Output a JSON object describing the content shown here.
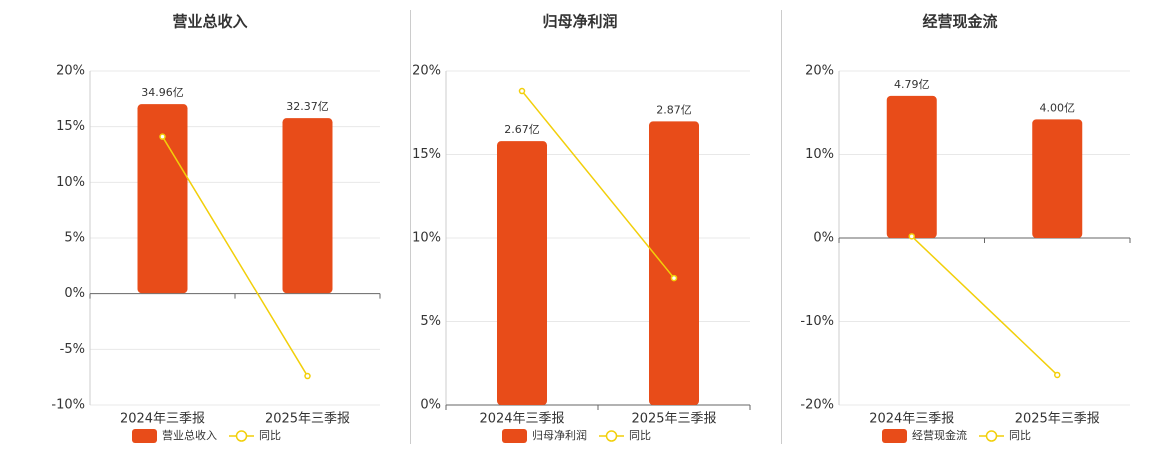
{
  "chart_data": [
    {
      "type": "combo",
      "title": "营业总收入",
      "categories": [
        "2024年三季报",
        "2025年三季报"
      ],
      "series": [
        {
          "name": "营业总收入",
          "type": "bar",
          "color": "#e84c19",
          "axis": "y2",
          "values": [
            34.96,
            32.37
          ],
          "value_labels": [
            "34.96亿",
            "32.37亿"
          ]
        },
        {
          "name": "同比",
          "type": "line",
          "color": "#f2cf0a",
          "values": [
            14.1,
            -7.4
          ]
        }
      ],
      "ylim": [
        -10,
        20
      ],
      "yticks": [
        {
          "value": 20,
          "label": "20%"
        },
        {
          "value": 15,
          "label": "15%"
        },
        {
          "value": 10,
          "label": "10%"
        },
        {
          "value": 5,
          "label": "5%"
        },
        {
          "value": 0,
          "label": "0%"
        },
        {
          "value": -5,
          "label": "-5%"
        },
        {
          "value": -10,
          "label": "-10%"
        }
      ],
      "y2lim": [
        -20.7,
        41.1
      ],
      "grid": true
    },
    {
      "type": "combo",
      "title": "归母净利润",
      "categories": [
        "2024年三季报",
        "2025年三季报"
      ],
      "series": [
        {
          "name": "归母净利润",
          "type": "bar",
          "color": "#e84c19",
          "axis": "y2",
          "values": [
            2.67,
            2.87
          ],
          "value_labels": [
            "2.67亿",
            "2.87亿"
          ]
        },
        {
          "name": "同比",
          "type": "line",
          "color": "#f2cf0a",
          "values": [
            18.8,
            7.6
          ]
        }
      ],
      "ylim": [
        0,
        20
      ],
      "yticks": [
        {
          "value": 20,
          "label": "20%"
        },
        {
          "value": 15,
          "label": "15%"
        },
        {
          "value": 10,
          "label": "10%"
        },
        {
          "value": 5,
          "label": "5%"
        },
        {
          "value": 0,
          "label": "0%"
        }
      ],
      "y2lim": [
        0,
        3.38
      ],
      "grid": true
    },
    {
      "type": "combo",
      "title": "经营现金流",
      "categories": [
        "2024年三季报",
        "2025年三季报"
      ],
      "series": [
        {
          "name": "经营现金流",
          "type": "bar",
          "color": "#e84c19",
          "axis": "y2",
          "values": [
            4.79,
            4.0
          ],
          "value_labels": [
            "4.79亿",
            "4.00亿"
          ]
        },
        {
          "name": "同比",
          "type": "line",
          "color": "#f2cf0a",
          "values": [
            0.2,
            -16.4
          ]
        }
      ],
      "ylim": [
        -20,
        20
      ],
      "yticks": [
        {
          "value": 20,
          "label": "20%"
        },
        {
          "value": 10,
          "label": "10%"
        },
        {
          "value": 0,
          "label": "0%"
        },
        {
          "value": -10,
          "label": "-10%"
        },
        {
          "value": -20,
          "label": "-20%"
        }
      ],
      "y2lim": [
        -5.63,
        5.63
      ],
      "grid": true
    }
  ]
}
